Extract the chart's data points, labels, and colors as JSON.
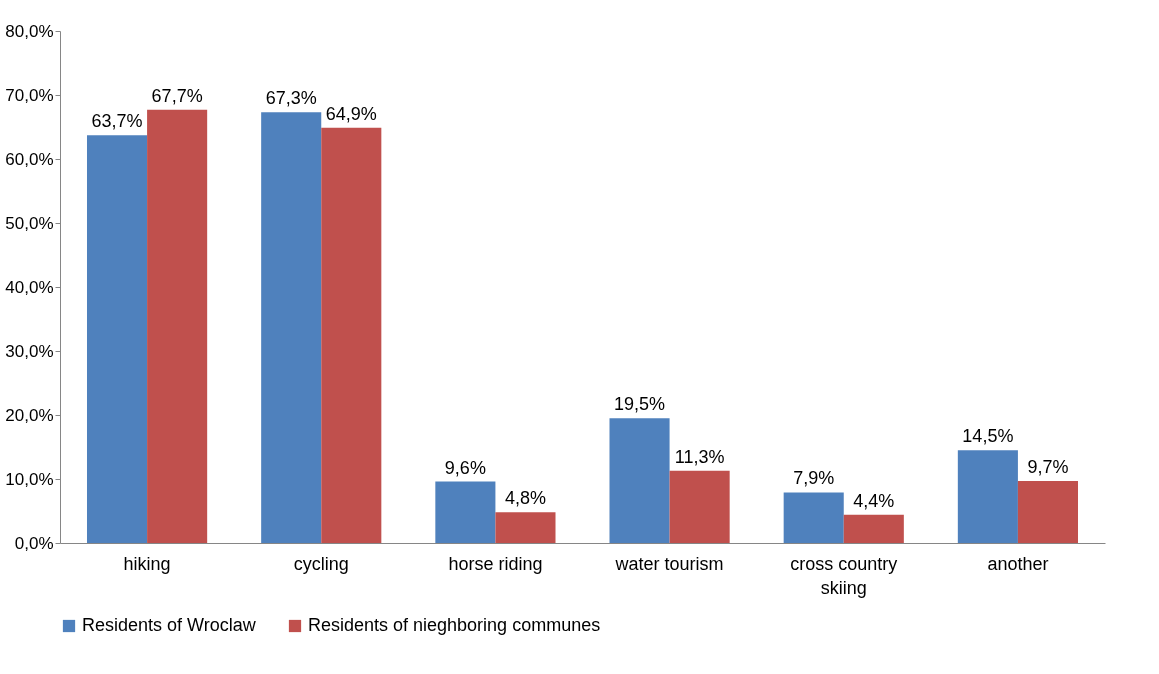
{
  "chart_data": {
    "type": "bar",
    "categories": [
      "hiking",
      "cycling",
      "horse riding",
      "water tourism",
      "cross country skiing",
      "another"
    ],
    "series": [
      {
        "name": "Residents of Wroclaw",
        "color": "#4f81bd",
        "values": [
          63.7,
          67.3,
          9.6,
          19.5,
          7.9,
          14.5
        ],
        "value_labels": [
          "63,7%",
          "67,3%",
          "9,6%",
          "19,5%",
          "7,9%",
          "14,5%"
        ]
      },
      {
        "name": "Residents of nieghboring communes",
        "color": "#c0504d",
        "values": [
          67.7,
          64.9,
          4.8,
          11.3,
          4.4,
          9.7
        ],
        "value_labels": [
          "67,7%",
          "64,9%",
          "4,8%",
          "11,3%",
          "4,4%",
          "9,7%"
        ]
      }
    ],
    "ylim": [
      0,
      80
    ],
    "yticks": [
      {
        "value": 0,
        "label": "0,0%"
      },
      {
        "value": 10,
        "label": "10,0%"
      },
      {
        "value": 20,
        "label": "20,0%"
      },
      {
        "value": 30,
        "label": "30,0%"
      },
      {
        "value": 40,
        "label": "40,0%"
      },
      {
        "value": 50,
        "label": "50,0%"
      },
      {
        "value": 60,
        "label": "60,0%"
      },
      {
        "value": 70,
        "label": "70,0%"
      },
      {
        "value": 80,
        "label": "80,0%"
      }
    ],
    "grid": false,
    "legend": "bottom"
  }
}
